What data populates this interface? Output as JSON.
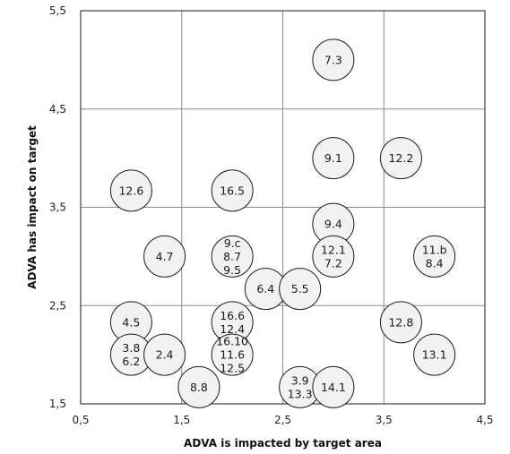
{
  "chart_data": {
    "type": "scatter",
    "xlabel": "ADVA is impacted by target area",
    "ylabel": "ADVA has impact on target",
    "xlim": [
      0.5,
      4.5
    ],
    "ylim": [
      1.5,
      5.5
    ],
    "xticks": [
      "0,5",
      "1,5",
      "2,5",
      "3,5",
      "4,5"
    ],
    "yticks": [
      "1,5",
      "2,5",
      "3,5",
      "4,5",
      "5,5"
    ],
    "grid": true,
    "colors": {
      "bubble_fill": "#f2f2f2",
      "bubble_stroke": "#1a1a1a",
      "grid": "#8c8c8c"
    },
    "points": [
      {
        "x": 3.0,
        "y": 5.0,
        "lines": [
          "7.3"
        ]
      },
      {
        "x": 3.0,
        "y": 4.0,
        "lines": [
          "9.1"
        ]
      },
      {
        "x": 3.67,
        "y": 4.0,
        "lines": [
          "12.2"
        ]
      },
      {
        "x": 1.0,
        "y": 3.67,
        "lines": [
          "12.6"
        ]
      },
      {
        "x": 2.0,
        "y": 3.67,
        "lines": [
          "16.5"
        ]
      },
      {
        "x": 3.0,
        "y": 3.33,
        "lines": [
          "9.4"
        ]
      },
      {
        "x": 1.33,
        "y": 3.0,
        "lines": [
          "4.7"
        ]
      },
      {
        "x": 2.0,
        "y": 3.0,
        "lines": [
          "9.c",
          "8.7",
          "9.5"
        ]
      },
      {
        "x": 3.0,
        "y": 3.0,
        "lines": [
          "12.1",
          "7.2"
        ]
      },
      {
        "x": 4.0,
        "y": 3.0,
        "lines": [
          "11.b",
          "8.4"
        ]
      },
      {
        "x": 2.33,
        "y": 2.67,
        "lines": [
          "6.4"
        ]
      },
      {
        "x": 2.67,
        "y": 2.67,
        "lines": [
          "5.5"
        ]
      },
      {
        "x": 1.0,
        "y": 2.33,
        "lines": [
          "4.5"
        ]
      },
      {
        "x": 2.0,
        "y": 2.33,
        "lines": [
          "16.6",
          "12.4"
        ]
      },
      {
        "x": 3.67,
        "y": 2.33,
        "lines": [
          "12.8"
        ]
      },
      {
        "x": 1.0,
        "y": 2.0,
        "lines": [
          "3.8",
          "6.2"
        ]
      },
      {
        "x": 1.33,
        "y": 2.0,
        "lines": [
          "2.4"
        ]
      },
      {
        "x": 2.0,
        "y": 2.0,
        "lines": [
          "16.10",
          "11.6",
          "12.5"
        ]
      },
      {
        "x": 4.0,
        "y": 2.0,
        "lines": [
          "13.1"
        ]
      },
      {
        "x": 1.67,
        "y": 1.67,
        "lines": [
          "8.8"
        ]
      },
      {
        "x": 2.67,
        "y": 1.67,
        "lines": [
          "3.9",
          "13.3"
        ]
      },
      {
        "x": 3.0,
        "y": 1.67,
        "lines": [
          "14.1"
        ]
      }
    ]
  }
}
